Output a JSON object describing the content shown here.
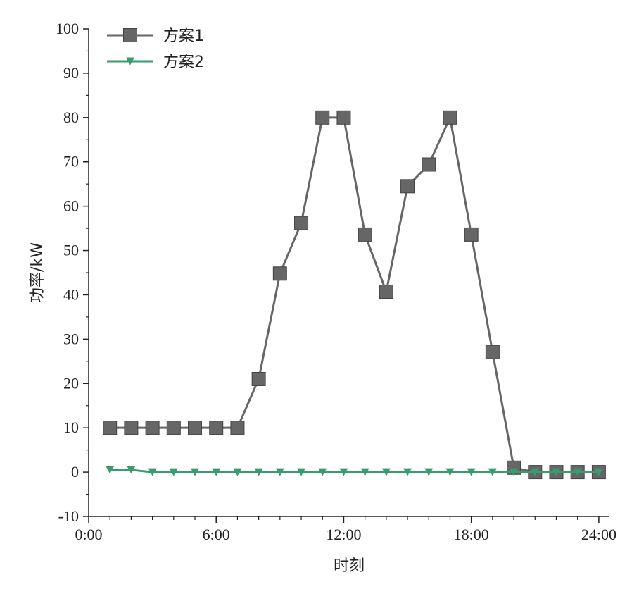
{
  "chart_data": {
    "type": "line",
    "xlabel": "时刻",
    "ylabel": "功率/kW",
    "xlim": [
      0,
      24.5
    ],
    "ylim": [
      -10,
      100
    ],
    "x_ticks": [
      {
        "value": 0,
        "label": "0:00"
      },
      {
        "value": 6,
        "label": "6:00"
      },
      {
        "value": 12,
        "label": "12:00"
      },
      {
        "value": 18,
        "label": "18:00"
      },
      {
        "value": 24,
        "label": "24:00"
      }
    ],
    "y_ticks": [
      {
        "value": -10,
        "label": "-10"
      },
      {
        "value": 0,
        "label": "0"
      },
      {
        "value": 10,
        "label": "10"
      },
      {
        "value": 20,
        "label": "20"
      },
      {
        "value": 30,
        "label": "30"
      },
      {
        "value": 40,
        "label": "40"
      },
      {
        "value": 50,
        "label": "50"
      },
      {
        "value": 60,
        "label": "60"
      },
      {
        "value": 70,
        "label": "70"
      },
      {
        "value": 80,
        "label": "80"
      },
      {
        "value": 90,
        "label": "90"
      },
      {
        "value": 100,
        "label": "100"
      }
    ],
    "x": [
      1,
      2,
      3,
      4,
      5,
      6,
      7,
      8,
      9,
      10,
      11,
      12,
      13,
      14,
      15,
      16,
      17,
      18,
      19,
      20,
      21,
      22,
      23,
      24
    ],
    "series": [
      {
        "name": "方案1",
        "marker": "square",
        "color": "#666666",
        "values": [
          10,
          10,
          10,
          10,
          10,
          10,
          10,
          21,
          44.8,
          56.2,
          80,
          80,
          53.6,
          40.7,
          64.5,
          69.4,
          80,
          53.6,
          27.1,
          1,
          0,
          0,
          0,
          0
        ]
      },
      {
        "name": "方案2",
        "marker": "triangle-down",
        "color": "#3a9b6e",
        "values": [
          0.5,
          0.5,
          0,
          0,
          0,
          0,
          0,
          0,
          0,
          0,
          0,
          0,
          0,
          0,
          0,
          0,
          0,
          0,
          0,
          0,
          0,
          0,
          0,
          0
        ]
      }
    ],
    "grid": false,
    "legend_position": "top-left"
  }
}
